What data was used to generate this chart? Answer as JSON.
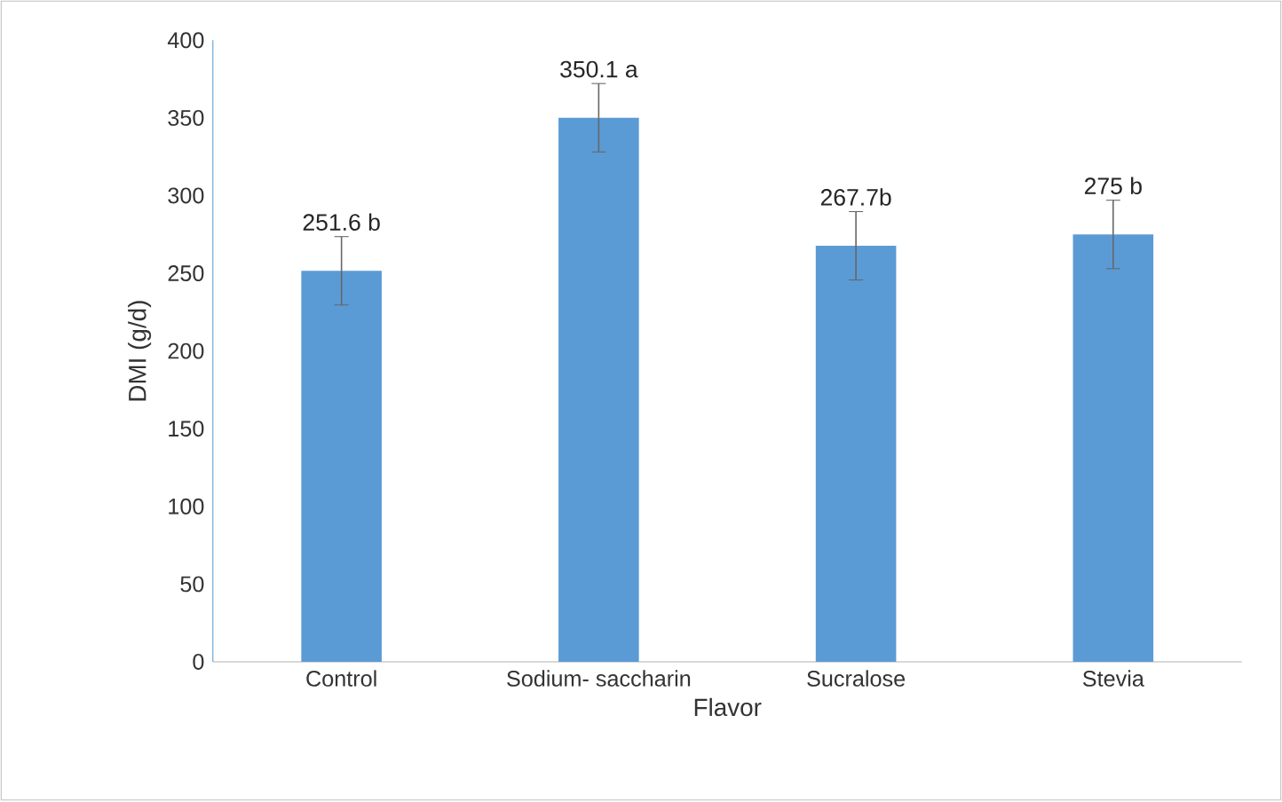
{
  "chart_data": {
    "type": "bar",
    "xlabel": "Flavor",
    "ylabel": "DMI (g/d)",
    "categories": [
      "Control",
      "Sodium- saccharin",
      "Sucralose",
      "Stevia"
    ],
    "values": [
      251.6,
      350.1,
      267.7,
      275
    ],
    "errors": [
      22,
      22,
      22,
      22
    ],
    "value_labels": [
      "251.6 b",
      "350.1 a",
      "267.7b",
      "275 b"
    ],
    "color": "#5b9bd5",
    "ylim": [
      0,
      400
    ],
    "yticks": [
      0,
      50,
      100,
      150,
      200,
      250,
      300,
      350,
      400
    ],
    "grid": false
  }
}
